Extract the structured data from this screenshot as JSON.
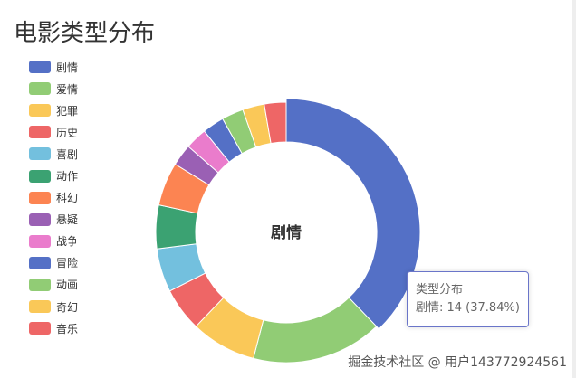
{
  "chart_data": {
    "type": "pie",
    "title": "电影类型分布",
    "series_name": "类型分布",
    "donut": true,
    "legend_position": "left",
    "center_label": "剧情",
    "categories": [
      "剧情",
      "爱情",
      "犯罪",
      "历史",
      "喜剧",
      "动作",
      "科幻",
      "悬疑",
      "战争",
      "冒险",
      "动画",
      "奇幻",
      "音乐"
    ],
    "values": [
      14,
      6,
      3,
      2,
      2,
      2,
      2,
      1,
      1,
      1,
      1,
      1,
      1
    ],
    "colors": [
      "#5470c6",
      "#91cc75",
      "#fac858",
      "#ee6666",
      "#73c0de",
      "#3ba272",
      "#fc8452",
      "#9a60b4",
      "#ea7ccc",
      "#5470c6",
      "#91cc75",
      "#fac858",
      "#ee6666"
    ]
  },
  "tooltip": {
    "title": "类型分布",
    "text": "剧情: 14 (37.84%)"
  },
  "watermark": "掘金技术社区 @ 用户143772924561"
}
